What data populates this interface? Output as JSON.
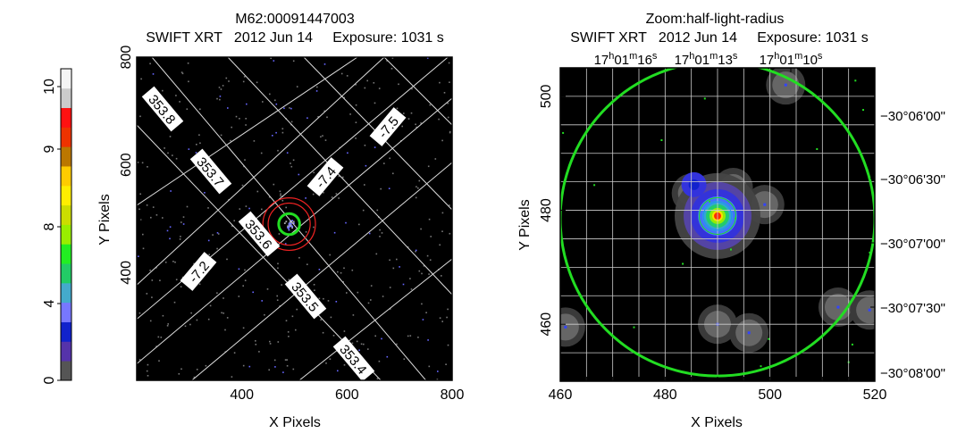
{
  "colorbar": {
    "ticks": [
      "0",
      "4",
      "8",
      "9",
      "10"
    ],
    "colors": [
      "#555555",
      "#5533aa",
      "#1122cc",
      "#7777ff",
      "#44aacc",
      "#22cc66",
      "#22ee22",
      "#99ee00",
      "#ccdd00",
      "#ffee00",
      "#ffcc00",
      "#bb7700",
      "#ee3300",
      "#ff1111",
      "#cccccc",
      "#f5f5f5"
    ]
  },
  "left_panel": {
    "title_line1": "M62:00091447003",
    "title_line2": "SWIFT XRT   2012 Jun 14     Exposure: 1031 s",
    "xlabel": "X Pixels",
    "ylabel": "Y Pixels",
    "xlim": [
      200,
      800
    ],
    "ylim": [
      200,
      800
    ],
    "xticks": [
      "400",
      "600",
      "800"
    ],
    "yticks": [
      "400",
      "600",
      "800"
    ],
    "grid_labels": [
      "353.8",
      "353.7",
      "353.6",
      "353.5",
      "353.4",
      "-7.2",
      "-7.4",
      "-7.5"
    ]
  },
  "right_panel": {
    "title_line1": "Zoom:half-light-radius",
    "title_line2": "SWIFT XRT   2012 Jun 14     Exposure: 1031 s",
    "xlabel": "X Pixels",
    "ylabel": "Y Pixels",
    "xlim": [
      460,
      520
    ],
    "ylim": [
      450,
      505
    ],
    "xticks": [
      "460",
      "480",
      "500",
      "520"
    ],
    "yticks": [
      "460",
      "480",
      "500"
    ],
    "ra_ticks": [
      "17h01m16s",
      "17h01m13s",
      "17h01m10s"
    ],
    "dec_ticks": [
      "-30°06'00\"",
      "-30°06'30\"",
      "-30°07'00\"",
      "-30°07'30\"",
      "-30°08'00\""
    ]
  },
  "chart_data": [
    {
      "type": "heatmap",
      "title": "M62:00091447003",
      "subtitle": "SWIFT XRT   2012 Jun 14     Exposure: 1031 s",
      "xlabel": "X Pixels",
      "ylabel": "Y Pixels",
      "xlim": [
        200,
        800
      ],
      "ylim": [
        200,
        800
      ],
      "source_region": {
        "x": 490,
        "y": 490,
        "radius": 20
      },
      "background_rings": [
        {
          "x": 490,
          "y": 490,
          "radius": 50
        },
        {
          "x": 490,
          "y": 490,
          "radius": 40
        }
      ],
      "grid": true
    },
    {
      "type": "heatmap",
      "title": "Zoom:half-light-radius",
      "subtitle": "SWIFT XRT   2012 Jun 14     Exposure: 1031 s",
      "xlabel": "X Pixels",
      "ylabel": "Y Pixels",
      "xlim": [
        460,
        520
      ],
      "ylim": [
        450,
        505
      ],
      "half_light_circle": {
        "x": 490,
        "y": 478.5,
        "radius": 30
      },
      "source_circle": {
        "x": 490,
        "y": 479,
        "radius": 3.5
      },
      "grid": true
    }
  ]
}
